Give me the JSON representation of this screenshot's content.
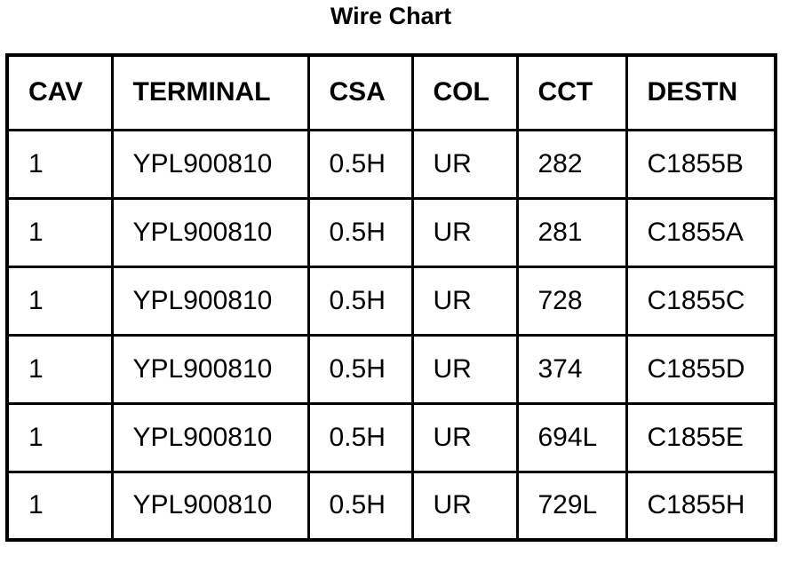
{
  "title": "Wire Chart",
  "table": {
    "header": [
      "CAV",
      "TERMINAL",
      "CSA",
      "COL",
      "CCT",
      "DESTN"
    ],
    "rows": [
      [
        "1",
        "YPL900810",
        "0.5H",
        "UR",
        "282",
        "C1855B"
      ],
      [
        "1",
        "YPL900810",
        "0.5H",
        "UR",
        "281",
        "C1855A"
      ],
      [
        "1",
        "YPL900810",
        "0.5H",
        "UR",
        "728",
        "C1855C"
      ],
      [
        "1",
        "YPL900810",
        "0.5H",
        "UR",
        "374",
        "C1855D"
      ],
      [
        "1",
        "YPL900810",
        "0.5H",
        "UR",
        "694L",
        "C1855E"
      ],
      [
        "1",
        "YPL900810",
        "0.5H",
        "UR",
        "729L",
        "C1855H"
      ]
    ]
  }
}
